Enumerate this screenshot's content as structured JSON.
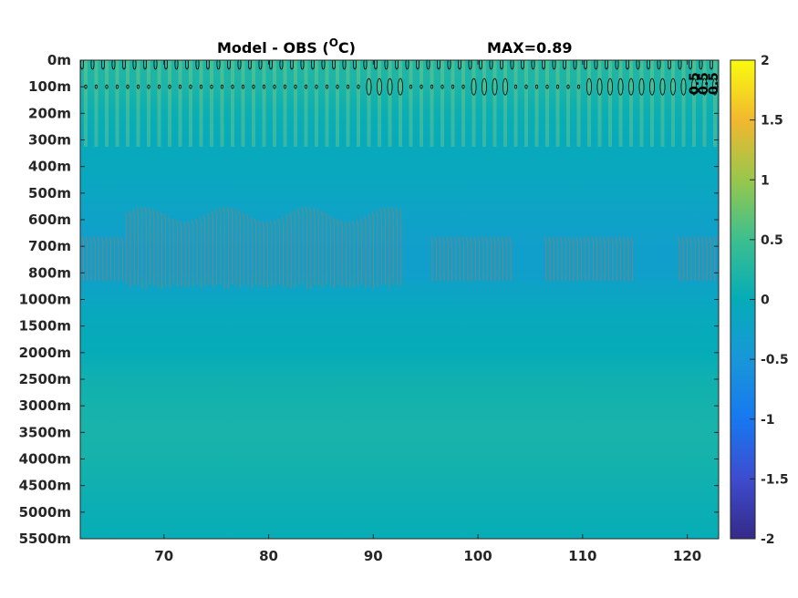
{
  "chart_data": {
    "type": "heatmap",
    "title": "Model - OBS (",
    "title_superscript": "O",
    "title_unit": "C)",
    "annotation": "MAX=0.89",
    "xlim": [
      62,
      123
    ],
    "x_ticks": [
      70,
      80,
      90,
      100,
      110,
      120
    ],
    "y_ticks": [
      "0m",
      "100m",
      "200m",
      "300m",
      "400m",
      "500m",
      "600m",
      "700m",
      "800m",
      "1000m",
      "1500m",
      "2000m",
      "2500m",
      "3000m",
      "3500m",
      "4000m",
      "4500m",
      "5000m",
      "5500m"
    ],
    "colorbar": {
      "clim": [
        -2,
        2
      ],
      "ticks": [
        "2",
        "1.5",
        "1",
        "0.5",
        "0",
        "-0.5",
        "-1",
        "-1.5",
        "-2"
      ],
      "colormap": "parula"
    },
    "depth_profile": [
      0.25,
      0.2,
      0.05,
      -0.05,
      -0.1,
      -0.15,
      -0.25,
      -0.3,
      -0.3,
      -0.15,
      -0.05,
      0.0,
      0.1,
      0.15,
      0.18,
      0.15,
      0.1,
      0.05,
      0.02
    ],
    "contour_labels": [
      "0.5",
      "0.5",
      "0.5"
    ],
    "colors": {
      "low_contour": "#8a7f74",
      "high_contour": "#000000",
      "frame": "#262626"
    }
  }
}
